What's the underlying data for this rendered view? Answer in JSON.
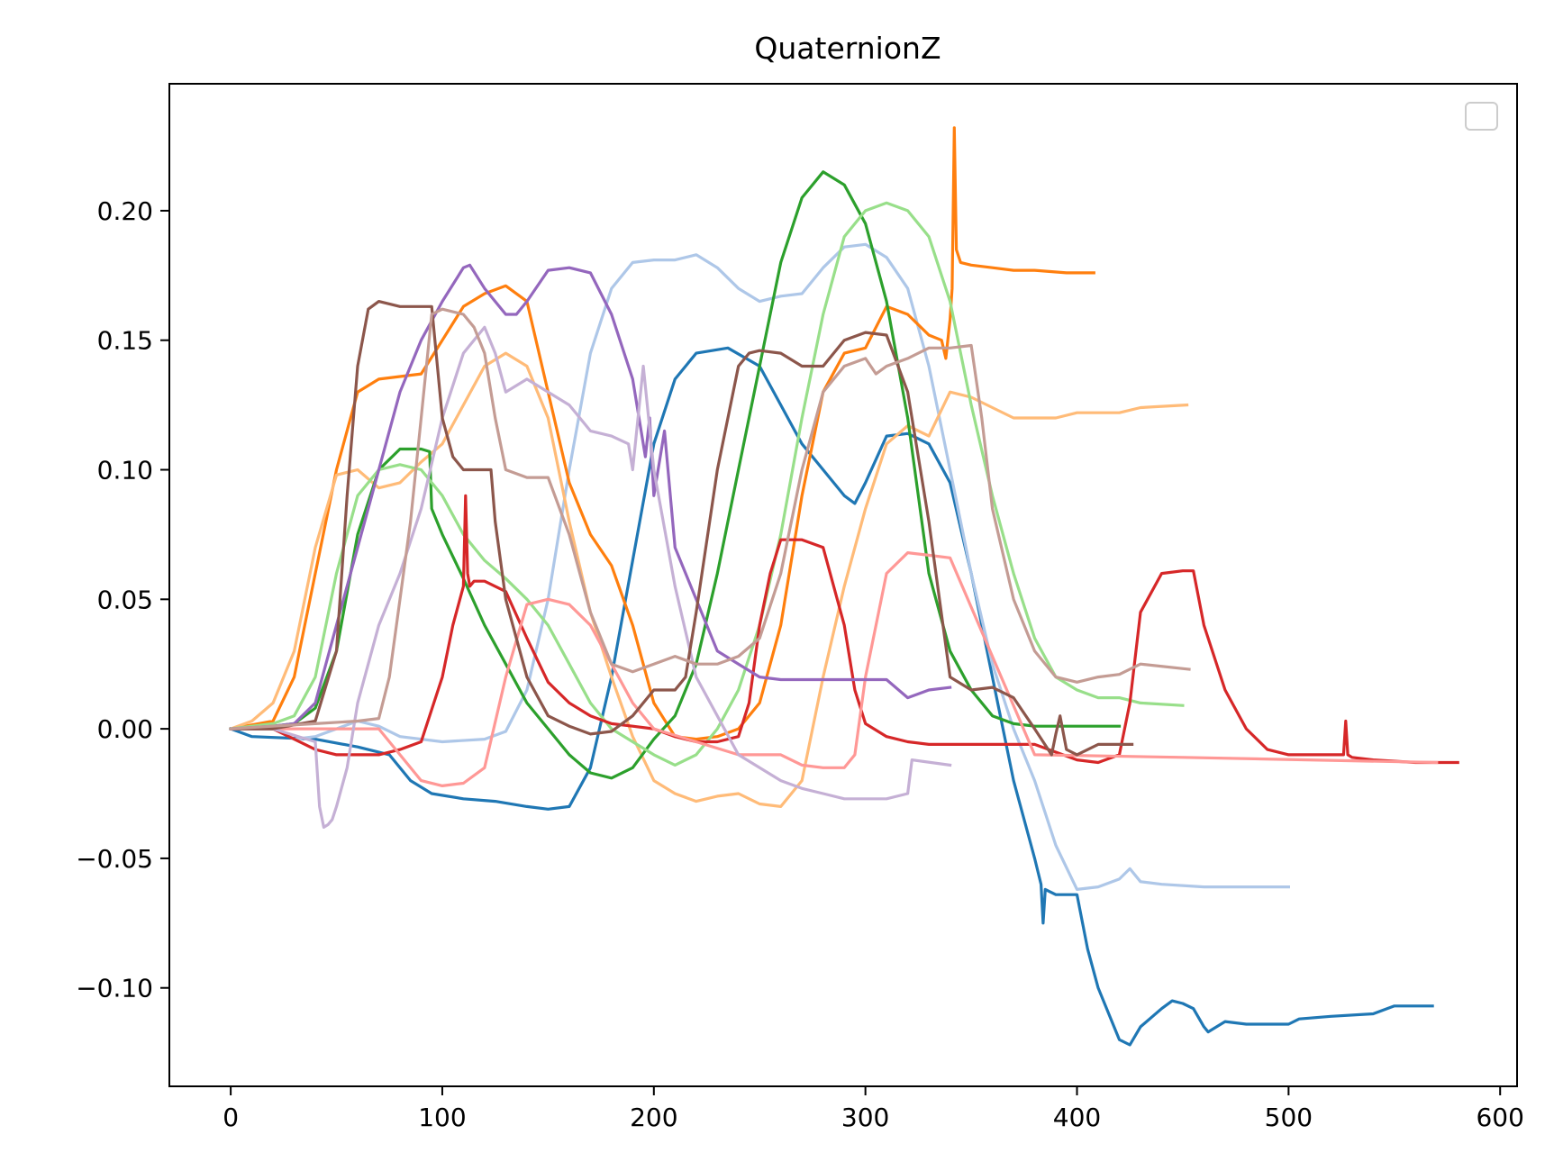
{
  "chart_data": {
    "type": "line",
    "title": "QuaternionZ",
    "xlabel": "",
    "ylabel": "",
    "xlim": [
      -29,
      608
    ],
    "ylim": [
      -0.138,
      0.249
    ],
    "xticks": [
      0,
      100,
      200,
      300,
      400,
      500,
      600
    ],
    "yticks": [
      -0.1,
      -0.05,
      0.0,
      0.05,
      0.1,
      0.15,
      0.2
    ],
    "grid": false,
    "legend": "top-right, empty",
    "series": [
      {
        "color": "#1f77b4",
        "x": [
          0,
          10,
          40,
          60,
          75,
          85,
          95,
          110,
          125,
          140,
          150,
          160,
          170,
          180,
          190,
          200,
          210,
          220,
          235,
          250,
          260,
          270,
          280,
          290,
          295,
          300,
          310,
          320,
          330,
          340,
          350,
          360,
          370,
          380,
          383,
          384,
          385,
          390,
          400,
          405,
          410,
          420,
          425,
          430,
          440,
          445,
          450,
          455,
          460,
          462,
          470,
          480,
          490,
          500,
          505,
          520,
          540,
          550,
          568
        ],
        "y": [
          0,
          -0.003,
          -0.004,
          -0.007,
          -0.01,
          -0.02,
          -0.025,
          -0.027,
          -0.028,
          -0.03,
          -0.031,
          -0.03,
          -0.015,
          0.02,
          0.065,
          0.11,
          0.135,
          0.145,
          0.147,
          0.14,
          0.125,
          0.11,
          0.1,
          0.09,
          0.087,
          0.095,
          0.113,
          0.114,
          0.11,
          0.095,
          0.06,
          0.02,
          -0.02,
          -0.05,
          -0.06,
          -0.075,
          -0.062,
          -0.064,
          -0.064,
          -0.085,
          -0.1,
          -0.12,
          -0.122,
          -0.115,
          -0.108,
          -0.105,
          -0.106,
          -0.108,
          -0.115,
          -0.117,
          -0.113,
          -0.114,
          -0.114,
          -0.114,
          -0.112,
          -0.111,
          -0.11,
          -0.107,
          -0.107
        ]
      },
      {
        "color": "#aec7e8",
        "x": [
          0,
          20,
          30,
          40,
          60,
          70,
          80,
          100,
          120,
          130,
          140,
          150,
          160,
          170,
          180,
          190,
          200,
          210,
          220,
          230,
          240,
          250,
          260,
          270,
          280,
          290,
          300,
          310,
          320,
          330,
          340,
          350,
          360,
          370,
          380,
          390,
          400,
          410,
          420,
          425,
          430,
          440,
          460,
          500
        ],
        "y": [
          0,
          0,
          -0.004,
          -0.003,
          0.003,
          0.001,
          -0.003,
          -0.005,
          -0.004,
          -0.001,
          0.015,
          0.05,
          0.1,
          0.145,
          0.17,
          0.18,
          0.181,
          0.181,
          0.183,
          0.178,
          0.17,
          0.165,
          0.167,
          0.168,
          0.178,
          0.186,
          0.187,
          0.182,
          0.17,
          0.14,
          0.1,
          0.06,
          0.025,
          0,
          -0.02,
          -0.045,
          -0.062,
          -0.061,
          -0.058,
          -0.054,
          -0.059,
          -0.06,
          -0.061,
          -0.061
        ]
      },
      {
        "color": "#ff7f0e",
        "x": [
          0,
          20,
          30,
          40,
          50,
          60,
          70,
          90,
          100,
          110,
          120,
          130,
          140,
          150,
          160,
          170,
          180,
          190,
          200,
          210,
          220,
          230,
          240,
          250,
          260,
          270,
          280,
          290,
          300,
          310,
          320,
          330,
          336,
          338,
          340,
          341,
          342,
          343,
          345,
          350,
          360,
          370,
          380,
          395,
          408
        ],
        "y": [
          0,
          0.003,
          0.02,
          0.06,
          0.1,
          0.13,
          0.135,
          0.137,
          0.15,
          0.163,
          0.168,
          0.171,
          0.165,
          0.13,
          0.095,
          0.075,
          0.063,
          0.04,
          0.01,
          -0.003,
          -0.004,
          -0.003,
          0,
          0.01,
          0.04,
          0.09,
          0.13,
          0.145,
          0.147,
          0.163,
          0.16,
          0.152,
          0.15,
          0.143,
          0.158,
          0.17,
          0.232,
          0.185,
          0.18,
          0.179,
          0.178,
          0.177,
          0.177,
          0.176,
          0.176
        ]
      },
      {
        "color": "#ffbb78",
        "x": [
          0,
          10,
          20,
          30,
          40,
          50,
          60,
          70,
          80,
          90,
          100,
          110,
          120,
          130,
          140,
          150,
          160,
          170,
          180,
          190,
          200,
          210,
          220,
          230,
          240,
          250,
          260,
          270,
          280,
          290,
          300,
          310,
          320,
          330,
          340,
          350,
          360,
          370,
          380,
          390,
          400,
          420,
          430,
          452
        ],
        "y": [
          0,
          0.003,
          0.01,
          0.03,
          0.07,
          0.098,
          0.1,
          0.093,
          0.095,
          0.103,
          0.11,
          0.125,
          0.14,
          0.145,
          0.14,
          0.12,
          0.08,
          0.045,
          0.02,
          -0.003,
          -0.02,
          -0.025,
          -0.028,
          -0.026,
          -0.025,
          -0.029,
          -0.03,
          -0.02,
          0.02,
          0.055,
          0.085,
          0.11,
          0.117,
          0.113,
          0.13,
          0.128,
          0.124,
          0.12,
          0.12,
          0.12,
          0.122,
          0.122,
          0.124,
          0.125
        ]
      },
      {
        "color": "#2ca02c",
        "x": [
          0,
          20,
          30,
          40,
          50,
          60,
          70,
          80,
          90,
          94,
          95,
          100,
          110,
          120,
          130,
          140,
          150,
          160,
          170,
          180,
          190,
          200,
          210,
          220,
          230,
          240,
          250,
          260,
          270,
          280,
          290,
          300,
          310,
          320,
          330,
          340,
          350,
          360,
          370,
          380,
          420
        ],
        "y": [
          0,
          0.001,
          0.002,
          0.008,
          0.03,
          0.075,
          0.1,
          0.108,
          0.108,
          0.107,
          0.085,
          0.075,
          0.058,
          0.04,
          0.025,
          0.01,
          0,
          -0.01,
          -0.017,
          -0.019,
          -0.015,
          -0.004,
          0.005,
          0.025,
          0.06,
          0.1,
          0.14,
          0.18,
          0.205,
          0.215,
          0.21,
          0.195,
          0.165,
          0.12,
          0.06,
          0.03,
          0.015,
          0.005,
          0.002,
          0.001,
          0.001
        ]
      },
      {
        "color": "#98df8a",
        "x": [
          0,
          20,
          30,
          40,
          50,
          60,
          70,
          80,
          90,
          100,
          110,
          120,
          130,
          140,
          150,
          160,
          170,
          180,
          190,
          200,
          210,
          220,
          230,
          240,
          250,
          260,
          270,
          280,
          290,
          300,
          310,
          320,
          330,
          340,
          350,
          360,
          370,
          380,
          390,
          400,
          410,
          420,
          430,
          450
        ],
        "y": [
          0,
          0.002,
          0.005,
          0.02,
          0.06,
          0.09,
          0.1,
          0.102,
          0.1,
          0.09,
          0.075,
          0.065,
          0.058,
          0.05,
          0.04,
          0.025,
          0.01,
          0,
          -0.005,
          -0.01,
          -0.014,
          -0.01,
          0,
          0.015,
          0.04,
          0.075,
          0.12,
          0.16,
          0.19,
          0.2,
          0.203,
          0.2,
          0.19,
          0.165,
          0.125,
          0.09,
          0.06,
          0.035,
          0.02,
          0.015,
          0.012,
          0.012,
          0.01,
          0.009
        ]
      },
      {
        "color": "#d62728",
        "x": [
          0,
          20,
          40,
          50,
          60,
          70,
          80,
          90,
          100,
          105,
          110,
          111,
          112,
          113,
          115,
          120,
          130,
          140,
          150,
          160,
          170,
          180,
          190,
          200,
          210,
          220,
          230,
          240,
          245,
          250,
          255,
          260,
          270,
          280,
          290,
          295,
          300,
          310,
          320,
          330,
          340,
          360,
          380,
          400,
          410,
          420,
          425,
          430,
          440,
          450,
          455,
          460,
          470,
          480,
          490,
          500,
          510,
          520,
          526,
          527,
          528,
          530,
          540,
          560,
          580
        ],
        "y": [
          0,
          0,
          -0.008,
          -0.01,
          -0.01,
          -0.01,
          -0.008,
          -0.005,
          0.02,
          0.04,
          0.055,
          0.09,
          0.06,
          0.055,
          0.057,
          0.057,
          0.053,
          0.035,
          0.018,
          0.01,
          0.005,
          0.002,
          0.001,
          0,
          -0.003,
          -0.005,
          -0.005,
          -0.003,
          0.01,
          0.04,
          0.06,
          0.073,
          0.073,
          0.07,
          0.04,
          0.015,
          0.002,
          -0.003,
          -0.005,
          -0.006,
          -0.006,
          -0.006,
          -0.006,
          -0.012,
          -0.013,
          -0.01,
          0.01,
          0.045,
          0.06,
          0.061,
          0.061,
          0.04,
          0.015,
          0,
          -0.008,
          -0.01,
          -0.01,
          -0.01,
          -0.01,
          0.003,
          -0.01,
          -0.011,
          -0.012,
          -0.013,
          -0.013
        ]
      },
      {
        "color": "#ff9896",
        "x": [
          0,
          20,
          40,
          60,
          70,
          80,
          90,
          100,
          110,
          120,
          130,
          140,
          150,
          160,
          170,
          180,
          190,
          200,
          220,
          240,
          260,
          270,
          280,
          290,
          295,
          300,
          310,
          320,
          330,
          340,
          380,
          450,
          570
        ],
        "y": [
          0,
          0,
          0,
          0,
          0,
          -0.01,
          -0.02,
          -0.022,
          -0.021,
          -0.015,
          0.02,
          0.048,
          0.05,
          0.048,
          0.04,
          0.025,
          0.01,
          0,
          -0.005,
          -0.01,
          -0.01,
          -0.014,
          -0.015,
          -0.015,
          -0.01,
          0.02,
          0.06,
          0.068,
          0.067,
          0.066,
          -0.01,
          -0.011,
          -0.013
        ]
      },
      {
        "color": "#9467bd",
        "x": [
          0,
          20,
          30,
          40,
          50,
          60,
          70,
          80,
          90,
          100,
          110,
          113,
          120,
          130,
          135,
          140,
          150,
          160,
          170,
          180,
          190,
          196,
          198,
          200,
          205,
          210,
          220,
          230,
          240,
          250,
          260,
          270,
          280,
          290,
          310,
          320,
          330,
          340
        ],
        "y": [
          0,
          0.001,
          0.002,
          0.01,
          0.04,
          0.07,
          0.1,
          0.13,
          0.15,
          0.165,
          0.178,
          0.179,
          0.17,
          0.16,
          0.16,
          0.165,
          0.177,
          0.178,
          0.176,
          0.16,
          0.135,
          0.105,
          0.12,
          0.09,
          0.115,
          0.07,
          0.05,
          0.03,
          0.025,
          0.02,
          0.019,
          0.019,
          0.019,
          0.019,
          0.019,
          0.012,
          0.015,
          0.016
        ]
      },
      {
        "color": "#c5b0d5",
        "x": [
          0,
          20,
          40,
          42,
          44,
          46,
          48,
          50,
          55,
          60,
          70,
          80,
          90,
          100,
          110,
          120,
          125,
          130,
          140,
          150,
          160,
          170,
          180,
          188,
          190,
          195,
          200,
          210,
          220,
          240,
          260,
          270,
          280,
          290,
          300,
          310,
          320,
          322,
          340
        ],
        "y": [
          0,
          0,
          -0.005,
          -0.03,
          -0.038,
          -0.037,
          -0.035,
          -0.03,
          -0.015,
          0.01,
          0.04,
          0.06,
          0.085,
          0.12,
          0.145,
          0.155,
          0.145,
          0.13,
          0.135,
          0.13,
          0.125,
          0.115,
          0.113,
          0.11,
          0.1,
          0.14,
          0.1,
          0.055,
          0.02,
          -0.01,
          -0.02,
          -0.023,
          -0.025,
          -0.027,
          -0.027,
          -0.027,
          -0.025,
          -0.012,
          -0.014
        ]
      },
      {
        "color": "#8c564b",
        "x": [
          0,
          20,
          40,
          50,
          55,
          60,
          65,
          70,
          80,
          90,
          95,
          100,
          105,
          110,
          120,
          123,
          125,
          130,
          140,
          150,
          160,
          170,
          180,
          190,
          200,
          210,
          215,
          220,
          230,
          240,
          245,
          250,
          260,
          270,
          280,
          290,
          300,
          310,
          320,
          330,
          340,
          350,
          360,
          370,
          380,
          388,
          390,
          392,
          395,
          400,
          410,
          426
        ],
        "y": [
          0,
          0,
          0.003,
          0.03,
          0.09,
          0.14,
          0.162,
          0.165,
          0.163,
          0.163,
          0.163,
          0.12,
          0.105,
          0.1,
          0.1,
          0.1,
          0.08,
          0.05,
          0.02,
          0.005,
          0.001,
          -0.002,
          -0.001,
          0.005,
          0.015,
          0.015,
          0.02,
          0.045,
          0.1,
          0.14,
          0.145,
          0.146,
          0.145,
          0.14,
          0.14,
          0.15,
          0.153,
          0.152,
          0.13,
          0.08,
          0.02,
          0.015,
          0.016,
          0.012,
          0,
          -0.01,
          -0.002,
          0.005,
          -0.008,
          -0.01,
          -0.006,
          -0.006
        ]
      },
      {
        "color": "#c49c94",
        "x": [
          0,
          20,
          40,
          60,
          70,
          75,
          80,
          85,
          90,
          95,
          100,
          110,
          115,
          120,
          125,
          130,
          140,
          150,
          160,
          170,
          180,
          190,
          200,
          210,
          220,
          230,
          240,
          250,
          260,
          270,
          280,
          290,
          300,
          305,
          310,
          320,
          330,
          340,
          350,
          355,
          360,
          370,
          380,
          390,
          400,
          410,
          420,
          430,
          453
        ],
        "y": [
          0,
          0.001,
          0.002,
          0.003,
          0.004,
          0.02,
          0.05,
          0.08,
          0.12,
          0.16,
          0.162,
          0.16,
          0.155,
          0.145,
          0.12,
          0.1,
          0.097,
          0.097,
          0.075,
          0.045,
          0.025,
          0.022,
          0.025,
          0.028,
          0.025,
          0.025,
          0.028,
          0.035,
          0.06,
          0.1,
          0.13,
          0.14,
          0.143,
          0.137,
          0.14,
          0.143,
          0.147,
          0.147,
          0.148,
          0.12,
          0.085,
          0.05,
          0.03,
          0.02,
          0.018,
          0.02,
          0.021,
          0.025,
          0.023
        ]
      }
    ]
  }
}
